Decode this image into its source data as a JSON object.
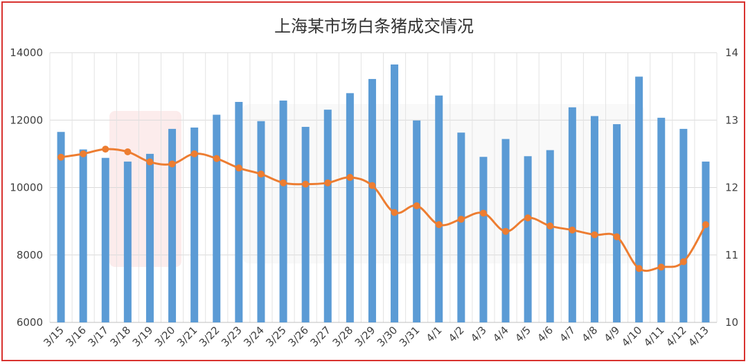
{
  "chart_data": {
    "type": "bar",
    "title": "上海某市场白条猪成交情况",
    "xlabel": "",
    "ylabel": "",
    "ylim": [
      6000,
      14000
    ],
    "y2lim": [
      10,
      14
    ],
    "y_ticks": [
      "6000",
      "8000",
      "10000",
      "12000",
      "14000"
    ],
    "y2_ticks": [
      "10",
      "11",
      "12",
      "13",
      "14"
    ],
    "grid": true,
    "categories": [
      "3/15",
      "3/16",
      "3/17",
      "3/18",
      "3/19",
      "3/20",
      "3/21",
      "3/22",
      "3/23",
      "3/24",
      "3/25",
      "3/26",
      "3/27",
      "3/28",
      "3/29",
      "3/30",
      "3/31",
      "4/1",
      "4/2",
      "4/3",
      "4/4",
      "4/5",
      "4/6",
      "4/7",
      "4/8",
      "4/9",
      "4/10",
      "4/11",
      "4/12",
      "4/13"
    ],
    "series": [
      {
        "type": "bar",
        "axis": "left",
        "color": "#5b9bd5",
        "values": [
          11650,
          11130,
          10880,
          10770,
          11000,
          11740,
          11780,
          12160,
          12540,
          11970,
          12580,
          11800,
          12310,
          12800,
          13220,
          13650,
          11990,
          12730,
          11630,
          10910,
          11440,
          10930,
          11110,
          12380,
          12120,
          11880,
          13290,
          12070,
          11740,
          10770
        ]
      },
      {
        "type": "line",
        "axis": "right",
        "color": "#ed7d31",
        "values": [
          12.45,
          12.5,
          12.57,
          12.53,
          12.38,
          12.35,
          12.5,
          12.43,
          12.29,
          12.2,
          12.07,
          12.05,
          12.07,
          12.15,
          12.03,
          11.63,
          11.73,
          11.45,
          11.53,
          11.62,
          11.35,
          11.55,
          11.43,
          11.37,
          11.3,
          11.27,
          10.8,
          10.82,
          10.9,
          11.45
        ]
      }
    ]
  }
}
